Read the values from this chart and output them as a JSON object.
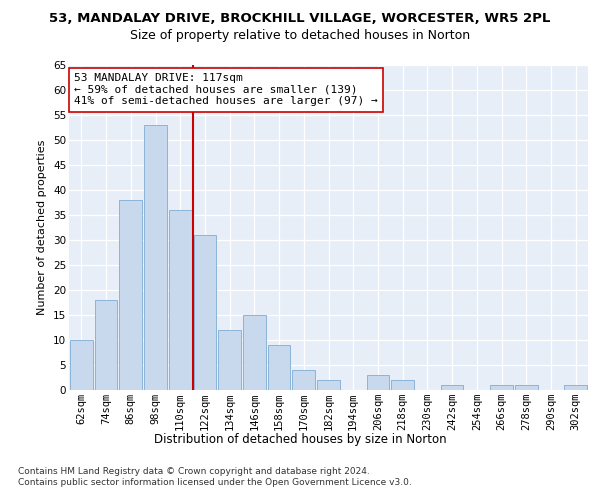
{
  "title1": "53, MANDALAY DRIVE, BROCKHILL VILLAGE, WORCESTER, WR5 2PL",
  "title2": "Size of property relative to detached houses in Norton",
  "xlabel": "Distribution of detached houses by size in Norton",
  "ylabel": "Number of detached properties",
  "bar_color": "#c8d9ee",
  "bar_edge_color": "#8ab4d8",
  "categories": [
    "62sqm",
    "74sqm",
    "86sqm",
    "98sqm",
    "110sqm",
    "122sqm",
    "134sqm",
    "146sqm",
    "158sqm",
    "170sqm",
    "182sqm",
    "194sqm",
    "206sqm",
    "218sqm",
    "230sqm",
    "242sqm",
    "254sqm",
    "266sqm",
    "278sqm",
    "290sqm",
    "302sqm"
  ],
  "values": [
    10,
    18,
    38,
    53,
    36,
    31,
    12,
    15,
    9,
    4,
    2,
    0,
    3,
    2,
    0,
    1,
    0,
    1,
    1,
    0,
    1
  ],
  "ylim": [
    0,
    65
  ],
  "yticks": [
    0,
    5,
    10,
    15,
    20,
    25,
    30,
    35,
    40,
    45,
    50,
    55,
    60,
    65
  ],
  "vline_pos": 4.5,
  "vline_color": "#cc0000",
  "annotation_text": "53 MANDALAY DRIVE: 117sqm\n← 59% of detached houses are smaller (139)\n41% of semi-detached houses are larger (97) →",
  "annotation_box_color": "#ffffff",
  "annotation_box_edge": "#cc0000",
  "footnote": "Contains HM Land Registry data © Crown copyright and database right 2024.\nContains public sector information licensed under the Open Government Licence v3.0.",
  "background_color": "#e8eef8",
  "grid_color": "#ffffff",
  "title1_fontsize": 9.5,
  "title2_fontsize": 9,
  "xlabel_fontsize": 8.5,
  "ylabel_fontsize": 8,
  "tick_fontsize": 7.5,
  "annotation_fontsize": 8,
  "footnote_fontsize": 6.5
}
